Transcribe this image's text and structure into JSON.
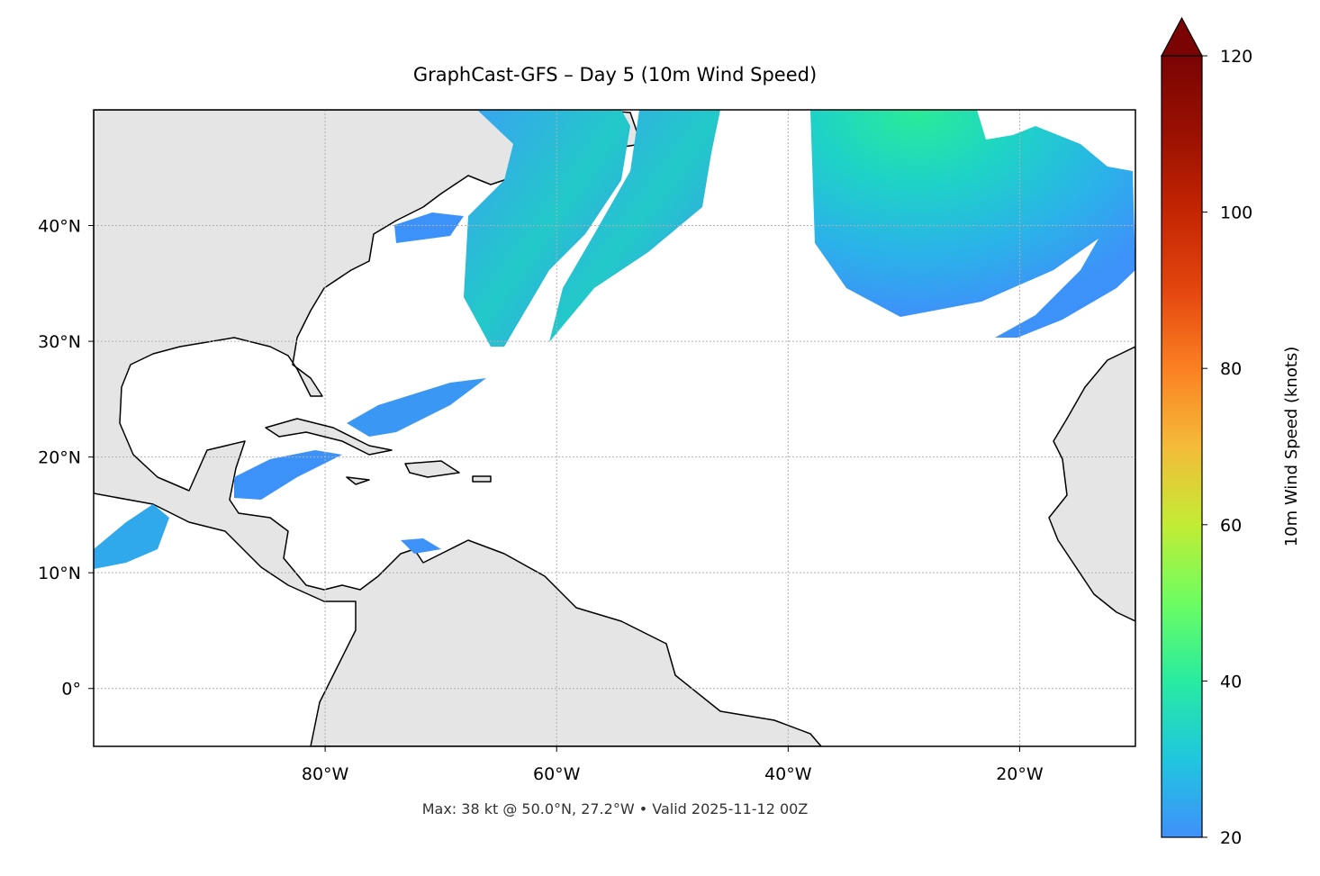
{
  "chart_data": {
    "type": "map",
    "title": "GraphCast-GFS – Day 5 (10m Wind Speed)",
    "footnote": "Max: 38 kt @ 50.0°N, 27.2°W • Valid 2025-11-12 00Z",
    "xlim": [
      -100,
      -10
    ],
    "ylim": [
      -5,
      50
    ],
    "xticks": [
      {
        "value": -80,
        "label": "80°W"
      },
      {
        "value": -60,
        "label": "60°W"
      },
      {
        "value": -40,
        "label": "40°W"
      },
      {
        "value": -20,
        "label": "20°W"
      }
    ],
    "yticks": [
      {
        "value": 0,
        "label": "0°"
      },
      {
        "value": 10,
        "label": "10°N"
      },
      {
        "value": 20,
        "label": "20°N"
      },
      {
        "value": 30,
        "label": "30°N"
      },
      {
        "value": 40,
        "label": "40°N"
      }
    ],
    "grid": true,
    "colorbar": {
      "label": "10m Wind Speed (knots)",
      "lim": [
        20,
        120
      ],
      "ticks": [
        20,
        40,
        60,
        80,
        100,
        120
      ],
      "extend": "max",
      "colormap": [
        "#4090fb",
        "#1fc6de",
        "#28eba0",
        "#6cfd62",
        "#c2ec34",
        "#f4bb39",
        "#fb8022",
        "#e4460f",
        "#c42503",
        "#9a1001",
        "#7a0403"
      ]
    }
  }
}
